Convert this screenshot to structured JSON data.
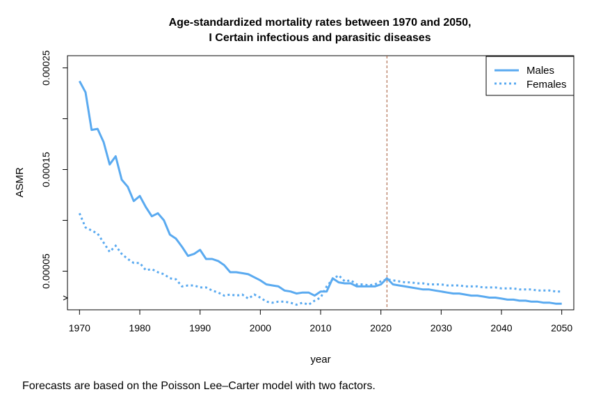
{
  "chart_data": {
    "type": "line",
    "title_line1": "Age-standardized mortality rates between 1970 and 2050,",
    "title_line2": "I Certain infectious and parasitic diseases",
    "xlabel": "year",
    "ylabel": "ASMR",
    "xlim": [
      1968,
      2052
    ],
    "ylim": [
      1.2e-05,
      0.000262
    ],
    "x_ticks": [
      "1970",
      "1980",
      "1990",
      "2000",
      "2010",
      "2020",
      "2030",
      "2040",
      "2050"
    ],
    "y_ticks": [
      "0.00005",
      "0.00015",
      "0.00025"
    ],
    "y_minor_ticks": [
      0.0001,
      0.0002
    ],
    "axis_break": true,
    "grid": false,
    "legend": "top-right",
    "forecast_start": 2021,
    "forecast_line_color": "#a0522d",
    "series": [
      {
        "name": "Males",
        "style": "solid",
        "color": "#5aaaf0",
        "x": [
          1970,
          1971,
          1972,
          1973,
          1974,
          1975,
          1976,
          1977,
          1978,
          1979,
          1980,
          1981,
          1982,
          1983,
          1984,
          1985,
          1986,
          1987,
          1988,
          1989,
          1990,
          1991,
          1992,
          1993,
          1994,
          1995,
          1996,
          1997,
          1998,
          1999,
          2000,
          2001,
          2002,
          2003,
          2004,
          2005,
          2006,
          2007,
          2008,
          2009,
          2010,
          2011,
          2012,
          2013,
          2014,
          2015,
          2016,
          2017,
          2018,
          2019,
          2020,
          2021,
          2022,
          2023,
          2024,
          2025,
          2026,
          2027,
          2028,
          2029,
          2030,
          2031,
          2032,
          2033,
          2034,
          2035,
          2036,
          2037,
          2038,
          2039,
          2040,
          2041,
          2042,
          2043,
          2044,
          2045,
          2046,
          2047,
          2048,
          2049,
          2050
        ],
        "values": [
          0.000237,
          0.000226,
          0.000189,
          0.00019,
          0.000177,
          0.000155,
          0.000163,
          0.00014,
          0.000133,
          0.000119,
          0.000124,
          0.000113,
          0.000104,
          0.000107,
          0.0001,
          8.6e-05,
          8.2e-05,
          7.4e-05,
          6.5e-05,
          6.7e-05,
          7.1e-05,
          6.2e-05,
          6.2e-05,
          6e-05,
          5.6e-05,
          4.9e-05,
          4.9e-05,
          4.8e-05,
          4.7e-05,
          4.4e-05,
          4.1e-05,
          3.7e-05,
          3.6e-05,
          3.5e-05,
          3.1e-05,
          3e-05,
          2.8e-05,
          2.9e-05,
          2.9e-05,
          2.6e-05,
          3e-05,
          3e-05,
          4.3e-05,
          3.9e-05,
          3.8e-05,
          3.8e-05,
          3.5e-05,
          3.5e-05,
          3.5e-05,
          3.5e-05,
          3.7e-05,
          4.3e-05,
          3.7e-05,
          3.6e-05,
          3.5e-05,
          3.4e-05,
          3.3e-05,
          3.2e-05,
          3.2e-05,
          3.1e-05,
          3e-05,
          2.9e-05,
          2.8e-05,
          2.8e-05,
          2.7e-05,
          2.6e-05,
          2.6e-05,
          2.5e-05,
          2.4e-05,
          2.4e-05,
          2.3e-05,
          2.2e-05,
          2.2e-05,
          2.1e-05,
          2.1e-05,
          2e-05,
          2e-05,
          1.9e-05,
          1.9e-05,
          1.8e-05,
          1.8e-05
        ]
      },
      {
        "name": "Females",
        "style": "dotted",
        "color": "#5aaaf0",
        "x": [
          1970,
          1971,
          1972,
          1973,
          1974,
          1975,
          1976,
          1977,
          1978,
          1979,
          1980,
          1981,
          1982,
          1983,
          1984,
          1985,
          1986,
          1987,
          1988,
          1989,
          1990,
          1991,
          1992,
          1993,
          1994,
          1995,
          1996,
          1997,
          1998,
          1999,
          2000,
          2001,
          2002,
          2003,
          2004,
          2005,
          2006,
          2007,
          2008,
          2009,
          2010,
          2011,
          2012,
          2013,
          2014,
          2015,
          2016,
          2017,
          2018,
          2019,
          2020,
          2021,
          2022,
          2023,
          2024,
          2025,
          2026,
          2027,
          2028,
          2029,
          2030,
          2031,
          2032,
          2033,
          2034,
          2035,
          2036,
          2037,
          2038,
          2039,
          2040,
          2041,
          2042,
          2043,
          2044,
          2045,
          2046,
          2047,
          2048,
          2049,
          2050
        ],
        "values": [
          0.000107,
          9.3e-05,
          9e-05,
          8.7e-05,
          7.8e-05,
          6.9e-05,
          7.5e-05,
          6.7e-05,
          6.2e-05,
          5.8e-05,
          5.8e-05,
          5.1e-05,
          5.2e-05,
          4.9e-05,
          4.7e-05,
          4.3e-05,
          4.2e-05,
          3.5e-05,
          3.6e-05,
          3.6e-05,
          3.4e-05,
          3.4e-05,
          3.1e-05,
          2.9e-05,
          2.6e-05,
          2.7e-05,
          2.6e-05,
          2.7e-05,
          2.3e-05,
          2.7e-05,
          2.4e-05,
          2e-05,
          1.9e-05,
          2e-05,
          2e-05,
          1.9e-05,
          1.7e-05,
          1.9e-05,
          1.7e-05,
          2.1e-05,
          2.4e-05,
          3.5e-05,
          4.2e-05,
          4.6e-05,
          4e-05,
          4.1e-05,
          3.7e-05,
          3.7e-05,
          3.6e-05,
          3.7e-05,
          4e-05,
          4.2e-05,
          4.1e-05,
          4e-05,
          3.9e-05,
          3.9e-05,
          3.8e-05,
          3.8e-05,
          3.7e-05,
          3.7e-05,
          3.7e-05,
          3.6e-05,
          3.6e-05,
          3.6e-05,
          3.5e-05,
          3.5e-05,
          3.5e-05,
          3.4e-05,
          3.4e-05,
          3.4e-05,
          3.3e-05,
          3.3e-05,
          3.3e-05,
          3.2e-05,
          3.2e-05,
          3.2e-05,
          3.1e-05,
          3.1e-05,
          3.1e-05,
          3e-05,
          3e-05
        ]
      }
    ]
  },
  "footnote": "Forecasts are based on the Poisson Lee–Carter model with two factors."
}
